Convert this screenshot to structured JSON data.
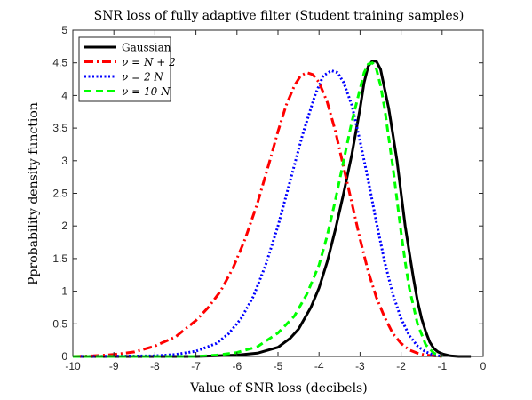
{
  "chart_data": {
    "type": "line",
    "title": "SNR loss of fully adaptive filter (Student training samples)",
    "xlabel": "Value of SNR loss (decibels)",
    "ylabel": "Pprobability density function",
    "xlim": [
      -10,
      0
    ],
    "ylim": [
      0,
      5
    ],
    "xticks": [
      -10,
      -9,
      -8,
      -7,
      -6,
      -5,
      -4,
      -3,
      -2,
      -1,
      0
    ],
    "yticks": [
      0,
      0.5,
      1,
      1.5,
      2,
      2.5,
      3,
      3.5,
      4,
      4.5,
      5
    ],
    "grid": false,
    "legend_position": "top-left",
    "series": [
      {
        "name": "Gaussian",
        "color": "#000000",
        "dash": "solid",
        "x": [
          -10,
          -7,
          -6,
          -5.5,
          -5,
          -4.7,
          -4.5,
          -4.2,
          -4,
          -3.8,
          -3.6,
          -3.4,
          -3.2,
          -3,
          -2.9,
          -2.8,
          -2.7,
          -2.6,
          -2.5,
          -2.4,
          -2.3,
          -2.2,
          -2.1,
          -2,
          -1.9,
          -1.8,
          -1.7,
          -1.6,
          -1.5,
          -1.4,
          -1.3,
          -1.2,
          -1.1,
          -1,
          -0.8,
          -0.6,
          -0.3
        ],
        "y": [
          0,
          0,
          0.02,
          0.05,
          0.14,
          0.28,
          0.42,
          0.75,
          1.05,
          1.45,
          1.95,
          2.5,
          3.1,
          3.8,
          4.2,
          4.45,
          4.53,
          4.52,
          4.4,
          4.1,
          3.8,
          3.4,
          3.0,
          2.5,
          2.0,
          1.6,
          1.2,
          0.85,
          0.58,
          0.38,
          0.22,
          0.12,
          0.07,
          0.04,
          0.01,
          0,
          0
        ]
      },
      {
        "name": "ν = N + 2",
        "color": "#ff0000",
        "dash": "dashdot",
        "x": [
          -10,
          -9.5,
          -9,
          -8.5,
          -8,
          -7.5,
          -7,
          -6.7,
          -6.4,
          -6.1,
          -5.8,
          -5.5,
          -5.2,
          -5,
          -4.8,
          -4.6,
          -4.45,
          -4.3,
          -4.15,
          -4,
          -3.8,
          -3.6,
          -3.4,
          -3.2,
          -3,
          -2.8,
          -2.6,
          -2.4,
          -2.2,
          -2,
          -1.8,
          -1.6,
          -1.4,
          -1.2,
          -1
        ],
        "y": [
          0,
          0.01,
          0.03,
          0.07,
          0.16,
          0.3,
          0.55,
          0.75,
          1.0,
          1.35,
          1.8,
          2.35,
          3.0,
          3.45,
          3.85,
          4.15,
          4.3,
          4.35,
          4.32,
          4.2,
          3.9,
          3.45,
          2.9,
          2.35,
          1.8,
          1.3,
          0.9,
          0.6,
          0.35,
          0.2,
          0.1,
          0.05,
          0.02,
          0.01,
          0
        ]
      },
      {
        "name": "ν = 2 N",
        "color": "#0000ff",
        "dash": "dotted",
        "x": [
          -10,
          -8,
          -7.5,
          -7,
          -6.5,
          -6.2,
          -5.9,
          -5.6,
          -5.3,
          -5,
          -4.7,
          -4.4,
          -4.1,
          -3.9,
          -3.7,
          -3.55,
          -3.4,
          -3.2,
          -3,
          -2.8,
          -2.6,
          -2.4,
          -2.2,
          -2,
          -1.8,
          -1.6,
          -1.4,
          -1.2,
          -1
        ],
        "y": [
          0,
          0.01,
          0.03,
          0.08,
          0.2,
          0.35,
          0.58,
          0.92,
          1.4,
          2.0,
          2.7,
          3.4,
          4.0,
          4.3,
          4.38,
          4.35,
          4.2,
          3.85,
          3.3,
          2.7,
          2.05,
          1.45,
          0.95,
          0.58,
          0.32,
          0.16,
          0.07,
          0.02,
          0
        ]
      },
      {
        "name": "ν = 10 N",
        "color": "#00ff00",
        "dash": "dashed",
        "x": [
          -10,
          -7,
          -6.5,
          -6,
          -5.5,
          -5,
          -4.6,
          -4.3,
          -4,
          -3.8,
          -3.6,
          -3.4,
          -3.2,
          -3,
          -2.9,
          -2.8,
          -2.7,
          -2.6,
          -2.5,
          -2.4,
          -2.3,
          -2.2,
          -2.1,
          -2,
          -1.9,
          -1.8,
          -1.6,
          -1.4,
          -1.2,
          -1
        ],
        "y": [
          0,
          0,
          0.02,
          0.06,
          0.15,
          0.36,
          0.62,
          0.95,
          1.4,
          1.85,
          2.4,
          3.0,
          3.6,
          4.1,
          4.35,
          4.48,
          4.5,
          4.4,
          4.15,
          3.8,
          3.35,
          2.9,
          2.4,
          1.9,
          1.45,
          1.05,
          0.5,
          0.18,
          0.05,
          0
        ]
      }
    ]
  }
}
